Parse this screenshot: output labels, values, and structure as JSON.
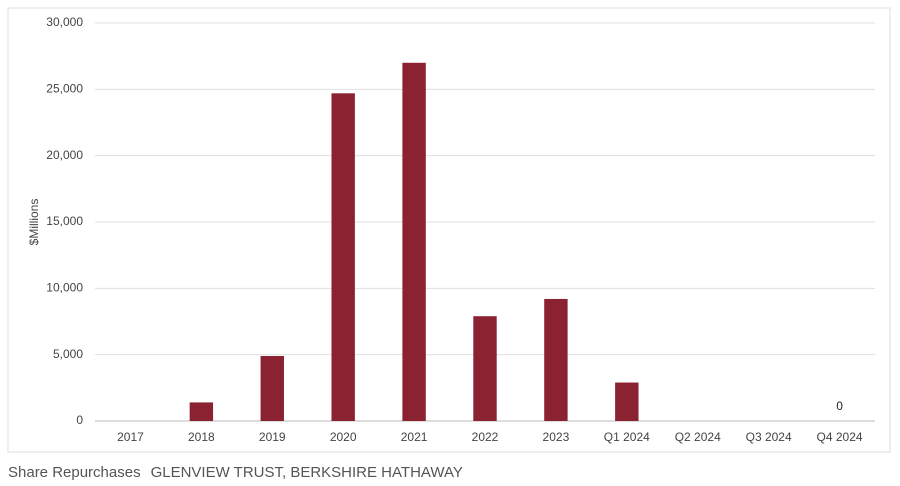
{
  "chart_data": {
    "type": "bar",
    "y_label": "$Millions",
    "categories": [
      "2017",
      "2018",
      "2019",
      "2020",
      "2021",
      "2022",
      "2023",
      "Q1 2024",
      "Q2 2024",
      "Q3 2024",
      "Q4 2024"
    ],
    "values": [
      null,
      1400,
      4900,
      24700,
      27000,
      7900,
      9200,
      2900,
      null,
      null,
      0
    ],
    "color": "#8b2232",
    "ylim": [
      0,
      30000
    ],
    "yticks": [
      0,
      {
        "value": 5000,
        "label": "5,000"
      },
      {
        "value": 10000,
        "label": "10,000"
      },
      {
        "value": 15000,
        "label": "15,000"
      },
      {
        "value": 20000,
        "label": "20,000"
      },
      {
        "value": 25000,
        "label": "25,000"
      },
      {
        "value": 30000,
        "label": "30,000"
      }
    ],
    "grid": true
  },
  "caption": {
    "title": "Share Repurchases",
    "source": "GLENVIEW TRUST, BERKSHIRE HATHAWAY"
  }
}
